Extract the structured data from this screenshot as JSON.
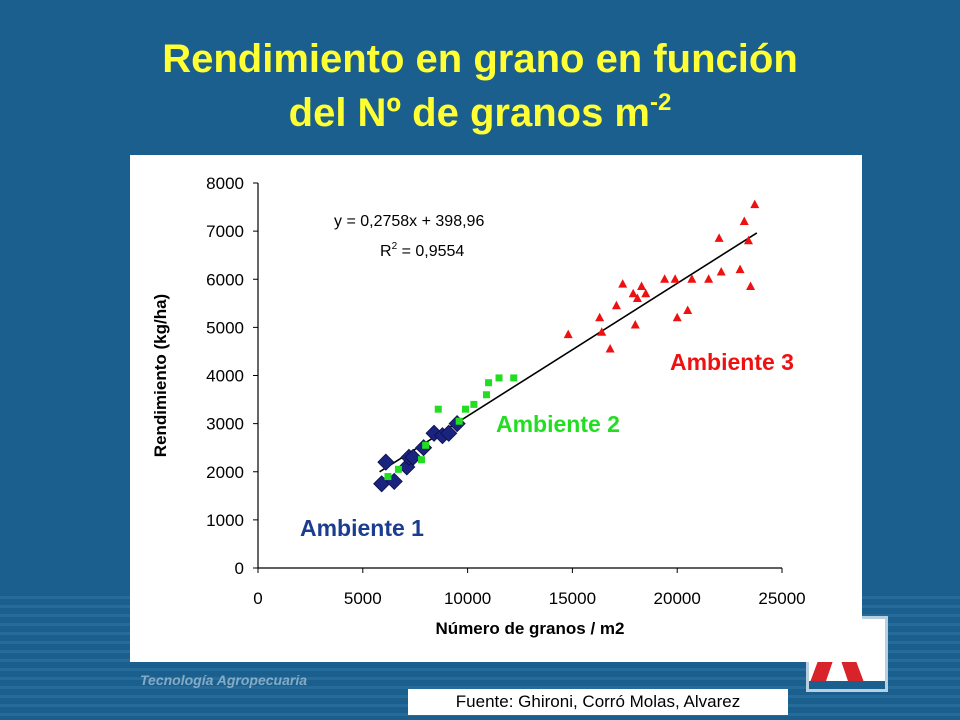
{
  "slide": {
    "title_line1": "Rendimiento en grano en función",
    "title_line2": "del Nº de granos m",
    "title_sup": "-2",
    "source": "Fuente: Ghironi, Corró Molas, Alvarez",
    "footer_tag": "Tecnología Agropecuaria"
  },
  "chart_data": {
    "type": "scatter",
    "xlabel": "Número de granos / m2",
    "ylabel": "Rendimiento (kg/ha)",
    "xlim": [
      0,
      25000
    ],
    "ylim": [
      0,
      8000
    ],
    "x_ticks": [
      "0",
      "5000",
      "10000",
      "15000",
      "20000",
      "25000"
    ],
    "y_ticks": [
      "0",
      "1000",
      "2000",
      "3000",
      "4000",
      "5000",
      "6000",
      "7000",
      "8000"
    ],
    "grid": false,
    "equation": "y = 0,2758x + 398,96",
    "r2_label": "R",
    "r2_sup": "2",
    "r2_value": " = 0,9554",
    "trendline": {
      "slope": 0.2758,
      "intercept": 398.96,
      "x_range": [
        5800,
        23800
      ]
    },
    "series": [
      {
        "name": "Ambiente 1",
        "color": "#1a237e",
        "marker": "diamond",
        "points": [
          [
            5900,
            1750
          ],
          [
            6100,
            2200
          ],
          [
            6500,
            1800
          ],
          [
            7100,
            2100
          ],
          [
            7200,
            2300
          ],
          [
            7400,
            2300
          ],
          [
            7900,
            2500
          ],
          [
            8400,
            2800
          ],
          [
            8800,
            2750
          ],
          [
            9100,
            2800
          ],
          [
            9500,
            3000
          ]
        ]
      },
      {
        "name": "Ambiente 2",
        "color": "#22dd22",
        "marker": "square",
        "points": [
          [
            6200,
            1900
          ],
          [
            6700,
            2050
          ],
          [
            7800,
            2250
          ],
          [
            8000,
            2550
          ],
          [
            8600,
            3300
          ],
          [
            9600,
            3050
          ],
          [
            9900,
            3300
          ],
          [
            10300,
            3400
          ],
          [
            10900,
            3600
          ],
          [
            11000,
            3850
          ],
          [
            11500,
            3950
          ],
          [
            12200,
            3950
          ]
        ]
      },
      {
        "name": "Ambiente 3",
        "color": "#ee1111",
        "marker": "triangle",
        "points": [
          [
            14800,
            4850
          ],
          [
            16300,
            5200
          ],
          [
            16400,
            4900
          ],
          [
            16800,
            4550
          ],
          [
            17100,
            5450
          ],
          [
            17400,
            5900
          ],
          [
            17900,
            5700
          ],
          [
            18000,
            5050
          ],
          [
            18100,
            5600
          ],
          [
            18300,
            5850
          ],
          [
            18500,
            5700
          ],
          [
            19400,
            6000
          ],
          [
            19900,
            6000
          ],
          [
            20000,
            5200
          ],
          [
            20500,
            5350
          ],
          [
            20700,
            6000
          ],
          [
            21500,
            6000
          ],
          [
            22000,
            6850
          ],
          [
            22100,
            6150
          ],
          [
            23000,
            6200
          ],
          [
            23200,
            7200
          ],
          [
            23400,
            6800
          ],
          [
            23500,
            5850
          ],
          [
            23700,
            7550
          ]
        ]
      }
    ]
  }
}
